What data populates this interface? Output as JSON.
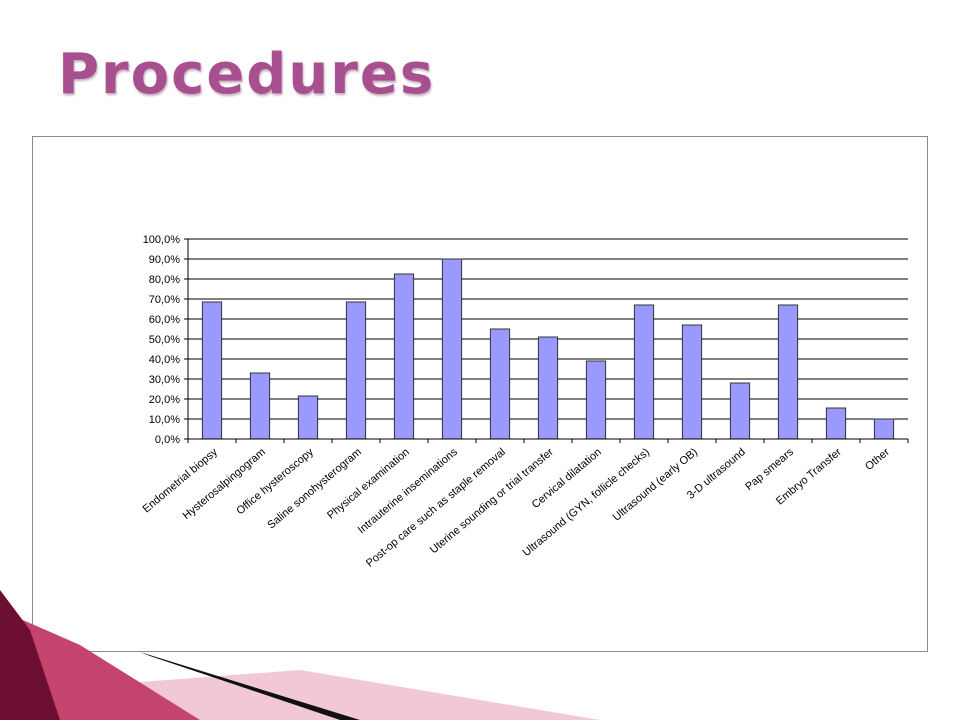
{
  "slide": {
    "title": "Procedures",
    "colors": {
      "title": "#a8508f",
      "bar_fill": "#9999ff",
      "bar_stroke": "#333333",
      "deco_dark": "#6d0f33",
      "deco_mid": "#c4446e",
      "deco_light": "#f3c8d6"
    }
  },
  "chart_data": {
    "type": "bar",
    "title": "",
    "xlabel": "",
    "ylabel": "",
    "ylim": [
      0,
      100
    ],
    "y_ticks": [
      "0,0%",
      "10,0%",
      "20,0%",
      "30,0%",
      "40,0%",
      "50,0%",
      "60,0%",
      "70,0%",
      "80,0%",
      "90,0%",
      "100,0%"
    ],
    "grid": true,
    "legend": "none",
    "categories": [
      "Endometrial biopsy",
      "Hysterosalpingogram",
      "Office hysteroscopy",
      "Saline sonohysterogram",
      "Physical examination",
      "Intrauterine inseminations",
      "Post-op care such as staple removal",
      "Uterine sounding or trial transfer",
      "Cervical dilatation",
      "Ultrasound (GYN, follicle checks)",
      "Ultrasound (early OB)",
      "3-D ultrasound",
      "Pap smears",
      "Embryo Transfer",
      "Other"
    ],
    "values": [
      68.5,
      33,
      21.5,
      68.5,
      82.5,
      90,
      55,
      51,
      39,
      67,
      57,
      28,
      67,
      15.5,
      10
    ]
  }
}
